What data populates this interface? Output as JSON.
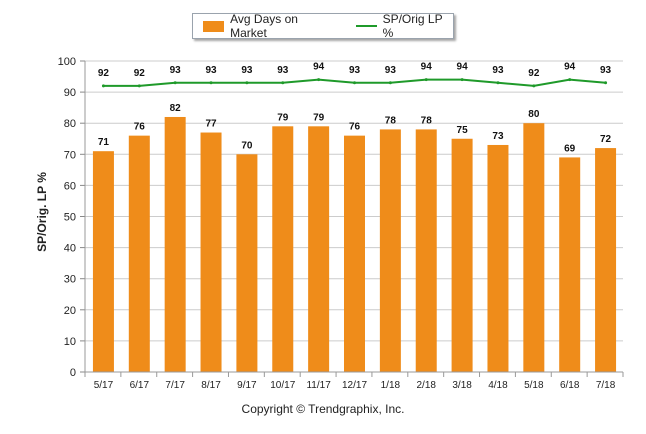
{
  "legend": {
    "bar_label": "Avg Days on Market",
    "line_label": "SP/Orig LP %"
  },
  "footer": {
    "copyright": "Copyright © Trendgraphix, Inc."
  },
  "chart_data": {
    "type": "bar",
    "categories": [
      "5/17",
      "6/17",
      "7/17",
      "8/17",
      "9/17",
      "10/17",
      "11/17",
      "12/17",
      "1/18",
      "2/18",
      "3/18",
      "4/18",
      "5/18",
      "6/18",
      "7/18"
    ],
    "series": [
      {
        "name": "Avg Days on Market",
        "type": "bar",
        "values": [
          71,
          76,
          82,
          77,
          70,
          79,
          79,
          76,
          78,
          78,
          75,
          73,
          80,
          69,
          72
        ]
      },
      {
        "name": "SP/Orig LP %",
        "type": "line",
        "values": [
          92,
          92,
          93,
          93,
          93,
          93,
          94,
          93,
          93,
          94,
          94,
          93,
          92,
          94,
          93
        ]
      }
    ],
    "ylabel": "SP/Orig. LP %",
    "xlabel": "",
    "ylim": [
      0,
      100
    ],
    "yticks": [
      0,
      10,
      20,
      30,
      40,
      50,
      60,
      70,
      80,
      90,
      100
    ],
    "grid": true,
    "legend_position": "top-center",
    "colors": {
      "bar": "#ef8c1a",
      "line": "#1f9a2a",
      "grid": "#cccccc"
    }
  }
}
